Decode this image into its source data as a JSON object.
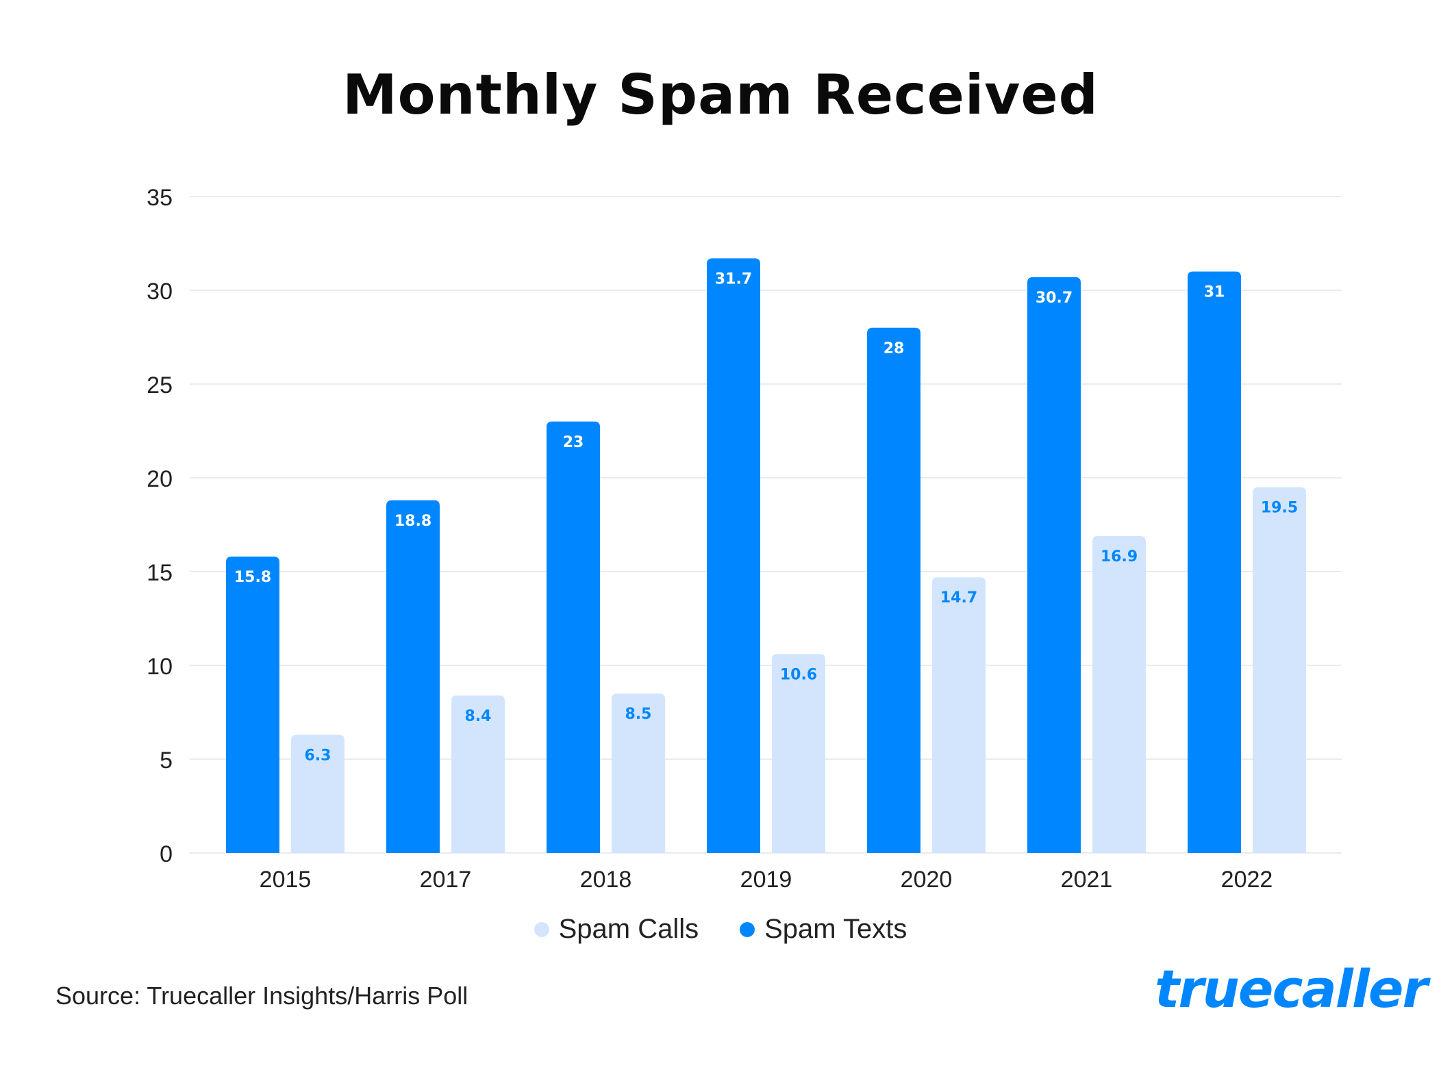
{
  "chart_data": {
    "type": "bar",
    "title": "Monthly Spam Received",
    "categories": [
      "2015",
      "2017",
      "2018",
      "2019",
      "2020",
      "2021",
      "2022"
    ],
    "series": [
      {
        "name": "Spam Texts",
        "color": "#0087FF",
        "label_color": "#FFFFFF",
        "values": [
          15.8,
          18.8,
          23,
          31.7,
          28,
          30.7,
          31
        ]
      },
      {
        "name": "Spam Calls",
        "color": "#D2E5FD",
        "label_color": "#0087FF",
        "values": [
          6.3,
          8.4,
          8.5,
          10.6,
          14.7,
          16.9,
          19.5
        ]
      }
    ],
    "yticks": [
      0,
      5,
      10,
      15,
      20,
      25,
      30,
      35
    ],
    "ylim": [
      0,
      35
    ],
    "grid": true,
    "legend_position": "bottom",
    "legend": [
      "Spam Calls",
      "Spam Texts"
    ],
    "xlabel": "",
    "ylabel": ""
  },
  "source": "Source: Truecaller Insights/Harris Poll",
  "logo": "truecaller"
}
